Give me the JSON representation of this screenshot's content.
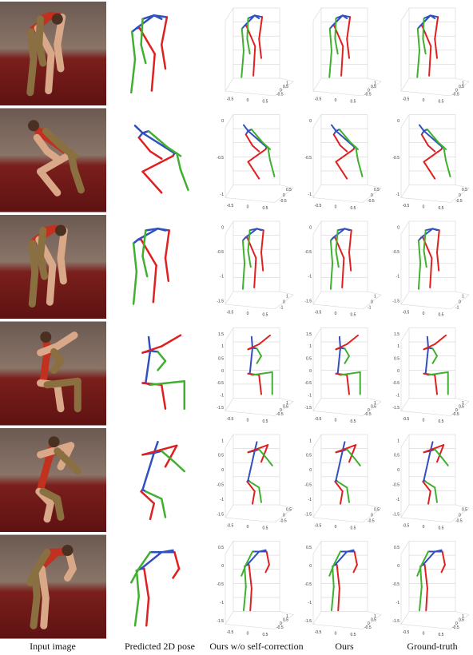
{
  "columns": [
    "Input image",
    "Predicted 2D pose",
    "Ours w/o self-correction",
    "Ours",
    "Ground-truth"
  ],
  "rows": [
    {
      "yticks": [],
      "xticks": [
        "-0.5",
        "0",
        "0.5"
      ],
      "zticks": [
        "1",
        "0.5",
        "0",
        "-0.5"
      ]
    },
    {
      "yticks": [
        "0",
        "-0.5",
        "-1"
      ],
      "xticks": [
        "-0.5",
        "0",
        "0.5"
      ],
      "zticks": [
        "0.5",
        "0",
        "-0.5"
      ]
    },
    {
      "yticks": [
        "0",
        "-0.5",
        "-1",
        "-1.5"
      ],
      "xticks": [
        "-0.5",
        "0",
        "0.5"
      ],
      "zticks": [
        "1",
        "0",
        "-1"
      ]
    },
    {
      "yticks": [
        "1.5",
        "1",
        "0.5",
        "0",
        "-0.5",
        "-1",
        "-1.5"
      ],
      "xticks": [
        "-0.5",
        "0",
        "0.5"
      ],
      "zticks": [
        "1",
        "0.5",
        "0",
        "-0.5"
      ]
    },
    {
      "yticks": [
        "1",
        "0.5",
        "0",
        "-0.5",
        "-1",
        "-1.5"
      ],
      "xticks": [
        "-0.5",
        "0",
        "0.5"
      ],
      "zticks": [
        "0.5",
        "0",
        "-0.5"
      ]
    },
    {
      "yticks": [
        "0.5",
        "0",
        "-0.5",
        "-1",
        "-1.5"
      ],
      "xticks": [
        "-0.5",
        "0",
        "0.5"
      ],
      "zticks": [
        "1",
        "0.5",
        "0",
        "-0.5"
      ]
    }
  ]
}
